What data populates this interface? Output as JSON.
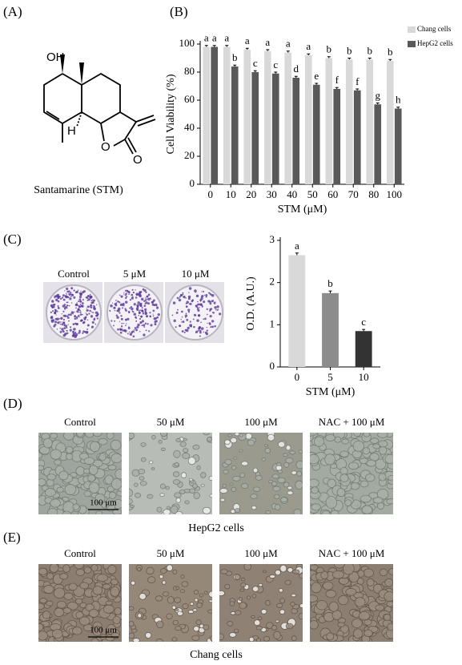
{
  "panels": {
    "A": {
      "label": "(A)",
      "caption": "Santamarine (STM)",
      "atoms": [
        "OH",
        "H",
        "O",
        "O"
      ]
    },
    "B": {
      "label": "(B)"
    },
    "C": {
      "label": "(C)",
      "dishes": [
        "Control",
        "5 μM",
        "10 μM"
      ]
    },
    "D": {
      "label": "(D)",
      "columns": [
        "Control",
        "50 μM",
        "100 μM",
        "NAC + 100 μM"
      ],
      "scale_bar": "100 μm",
      "caption": "HepG2 cells"
    },
    "E": {
      "label": "(E)",
      "columns": [
        "Control",
        "50 μM",
        "100 μM",
        "NAC + 100 μM"
      ],
      "scale_bar": "100 μm",
      "caption": "Chang cells"
    }
  },
  "chart_data": [
    {
      "type": "bar",
      "x_label": "STM (μM)",
      "y_label": "Cell Viability (%)",
      "categories": [
        "0",
        "10",
        "20",
        "30",
        "40",
        "50",
        "60",
        "70",
        "80",
        "100"
      ],
      "series": [
        {
          "name": "Chang cells",
          "color": "#d9d9d9",
          "values": [
            98,
            98,
            96,
            95,
            94,
            92,
            90,
            89,
            89,
            88
          ],
          "errors": [
            1,
            1,
            1,
            1,
            1,
            1,
            1,
            1,
            1,
            1
          ],
          "letters": [
            "a",
            "a",
            "a",
            "a",
            "a",
            "a",
            "b",
            "b",
            "b",
            "b"
          ]
        },
        {
          "name": "HepG2 cells",
          "color": "#595959",
          "values": [
            98,
            84,
            80,
            79,
            76,
            71,
            68,
            67,
            57,
            54
          ],
          "errors": [
            1,
            1,
            1,
            1,
            1,
            1,
            1,
            1,
            1,
            1
          ],
          "letters": [
            "a",
            "b",
            "c",
            "c",
            "d",
            "e",
            "f",
            "f",
            "g",
            "h"
          ]
        }
      ],
      "ylim": [
        0,
        100
      ],
      "yticks": [
        0,
        20,
        40,
        60,
        80,
        100
      ],
      "legend": "upper right"
    },
    {
      "type": "bar",
      "x_label": "STM (μM)",
      "y_label": "O.D. (A.U.)",
      "categories": [
        "0",
        "5",
        "10"
      ],
      "values": [
        2.65,
        1.75,
        0.85
      ],
      "errors": [
        0.05,
        0.05,
        0.04
      ],
      "colors": [
        "#d9d9d9",
        "#8c8c8c",
        "#333333"
      ],
      "letters": [
        "a",
        "b",
        "c"
      ],
      "ylim": [
        0,
        3
      ],
      "yticks": [
        0,
        1,
        2,
        3
      ]
    }
  ]
}
